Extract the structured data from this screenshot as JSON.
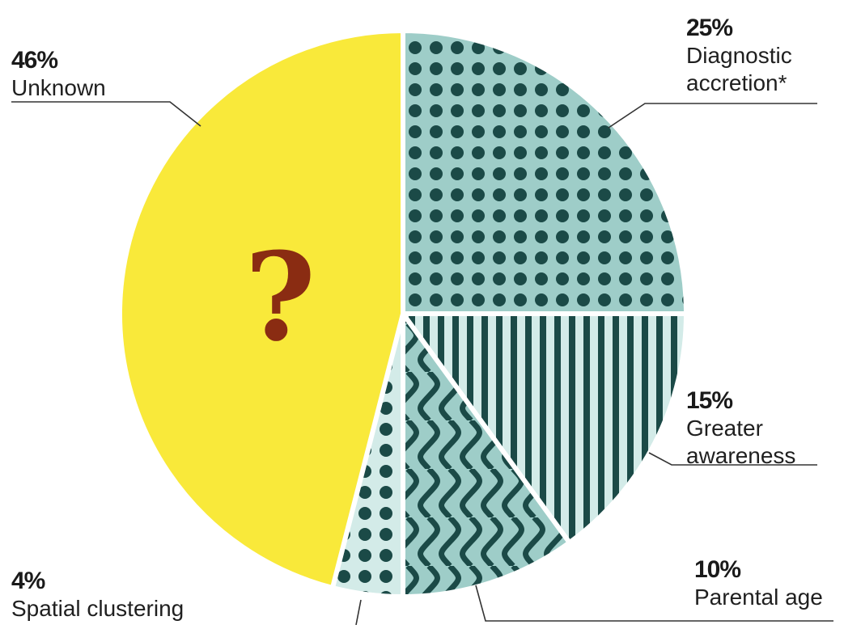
{
  "chart_data": {
    "type": "pie",
    "start": "12 o'clock",
    "direction": "clockwise",
    "slices": [
      {
        "key": "diagnostic",
        "percent_label": "25%",
        "label_lines": [
          "Diagnostic",
          "accretion*"
        ],
        "value": 25,
        "fill_color": "#9ecdc8",
        "pattern": "dots",
        "pattern_color": "#1b4a47"
      },
      {
        "key": "awareness",
        "percent_label": "15%",
        "label_lines": [
          "Greater",
          "awareness"
        ],
        "value": 15,
        "fill_color": "#d3ebe8",
        "pattern": "vertical-stripes",
        "pattern_color": "#1b4a47"
      },
      {
        "key": "parental",
        "percent_label": "10%",
        "label_lines": [
          "Parental age"
        ],
        "value": 10,
        "fill_color": "#9ecdc8",
        "pattern": "waves",
        "pattern_color": "#1b4a47"
      },
      {
        "key": "spatial",
        "percent_label": "4%",
        "label_lines": [
          "Spatial clustering"
        ],
        "value": 4,
        "fill_color": "#d3ebe8",
        "pattern": "dots",
        "pattern_color": "#1b4a47"
      },
      {
        "key": "unknown",
        "percent_label": "46%",
        "label_lines": [
          "Unknown"
        ],
        "value": 46,
        "fill_color": "#f9e93a",
        "pattern": "none",
        "pattern_color": "",
        "center_symbol": "?",
        "center_symbol_color": "#8a2c12"
      }
    ]
  }
}
